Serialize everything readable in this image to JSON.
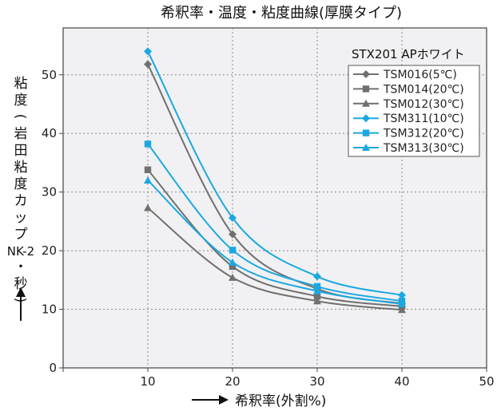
{
  "chart_data": {
    "type": "line",
    "title": "希釈率・温度・粘度曲線(厚膜タイプ)",
    "xlabel": "希釈率(外割%)",
    "ylabel_chars": [
      "粘",
      "度",
      "(",
      "岩",
      "田",
      "粘",
      "度",
      "カ",
      "ッ",
      "プ",
      "NK-2",
      "・",
      "秒",
      ")"
    ],
    "xlim": [
      0,
      50
    ],
    "ylim": [
      0,
      58
    ],
    "x_ticks": [
      0,
      10,
      20,
      30,
      40,
      50
    ],
    "y_ticks": [
      0,
      10,
      20,
      30,
      40,
      50
    ],
    "x_tick_labels": [
      "",
      "10",
      "20",
      "30",
      "40",
      "50"
    ],
    "y_tick_labels": [
      "0",
      "10",
      "20",
      "30",
      "40",
      "50"
    ],
    "origin_label": "0",
    "grid": true,
    "legend": {
      "title": "STX201 APホワイト",
      "position": "top-right"
    },
    "x": [
      10,
      20,
      30,
      40
    ],
    "series": [
      {
        "name": "TSM016(5℃)",
        "values": [
          51.8,
          22.8,
          13.5,
          11.0
        ],
        "color": "#707070",
        "marker": "diamond"
      },
      {
        "name": "TSM014(20℃)",
        "values": [
          33.8,
          17.3,
          12.2,
          10.5
        ],
        "color": "#707070",
        "marker": "square"
      },
      {
        "name": "TSM012(30℃)",
        "values": [
          27.3,
          15.4,
          11.4,
          9.9
        ],
        "color": "#707070",
        "marker": "triangle"
      },
      {
        "name": "TSM311(10℃)",
        "values": [
          54.0,
          25.6,
          15.6,
          12.4
        ],
        "color": "#1ba8e0",
        "marker": "diamond"
      },
      {
        "name": "TSM312(20℃)",
        "values": [
          38.2,
          20.1,
          13.9,
          11.4
        ],
        "color": "#1ba8e0",
        "marker": "square"
      },
      {
        "name": "TSM313(30℃)",
        "values": [
          32.0,
          18.0,
          13.1,
          10.9
        ],
        "color": "#1ba8e0",
        "marker": "triangle"
      }
    ]
  }
}
